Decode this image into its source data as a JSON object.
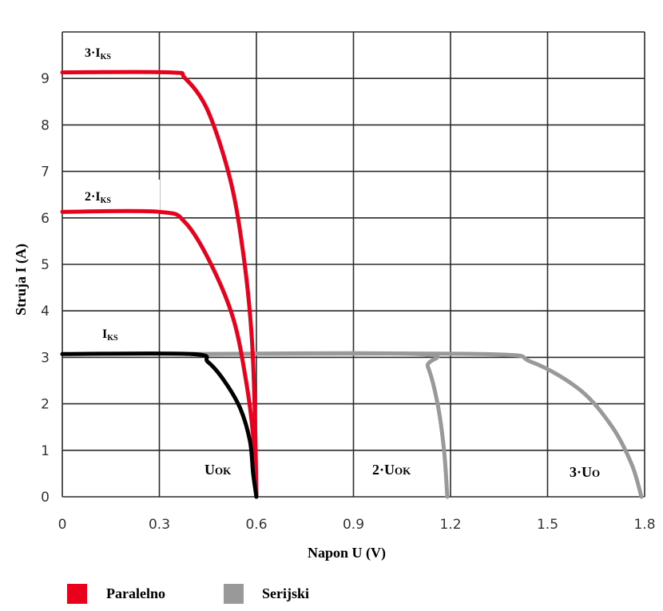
{
  "chart_data": {
    "type": "line",
    "xlabel": "Napon U (V)",
    "ylabel": "Struja  I (A)",
    "xlim": [
      0,
      1.8
    ],
    "ylim": [
      0,
      10
    ],
    "grid": true,
    "x_ticks": [
      "0",
      "0.3",
      "0.6",
      "0.9",
      "1.2",
      "1.5",
      "1.8"
    ],
    "y_ticks": [
      "0",
      "1",
      "2",
      "3",
      "4",
      "5",
      "6",
      "7",
      "8",
      "9"
    ],
    "series": [
      {
        "group": "Serijski",
        "color": "#999999",
        "points": [
          [
            0.4,
            3.07
          ],
          [
            1.1,
            3.07
          ],
          [
            1.13,
            2.8
          ],
          [
            1.16,
            2.0
          ],
          [
            1.18,
            1.0
          ],
          [
            1.19,
            0
          ]
        ]
      },
      {
        "group": "Serijski",
        "color": "#999999",
        "points": [
          [
            0.4,
            3.07
          ],
          [
            1.3,
            3.07
          ],
          [
            1.45,
            2.9
          ],
          [
            1.6,
            2.3
          ],
          [
            1.7,
            1.5
          ],
          [
            1.76,
            0.7
          ],
          [
            1.79,
            0
          ]
        ]
      },
      {
        "group": "Paralelno",
        "color": "#e8001c",
        "points": [
          [
            0,
            9.13
          ],
          [
            0.33,
            9.13
          ],
          [
            0.38,
            9.0
          ],
          [
            0.45,
            8.3
          ],
          [
            0.52,
            6.8
          ],
          [
            0.56,
            5.2
          ],
          [
            0.585,
            3.5
          ],
          [
            0.595,
            1.8
          ],
          [
            0.6,
            0
          ]
        ]
      },
      {
        "group": "Paralelno",
        "color": "#e8001c",
        "points": [
          [
            0,
            6.13
          ],
          [
            0.3,
            6.13
          ],
          [
            0.38,
            5.9
          ],
          [
            0.46,
            5.0
          ],
          [
            0.53,
            3.8
          ],
          [
            0.57,
            2.4
          ],
          [
            0.59,
            1.3
          ],
          [
            0.6,
            0
          ]
        ]
      },
      {
        "group": "single",
        "color": "#000000",
        "points": [
          [
            0,
            3.07
          ],
          [
            0.4,
            3.07
          ],
          [
            0.45,
            2.9
          ],
          [
            0.5,
            2.5
          ],
          [
            0.55,
            1.9
          ],
          [
            0.58,
            1.2
          ],
          [
            0.59,
            0.5
          ],
          [
            0.6,
            0
          ]
        ]
      }
    ],
    "annotations": {
      "ks3_prefix": "3·I",
      "ks2_prefix": "2·I",
      "ks1_prefix": "I",
      "ks_sub": "KS",
      "uok1_prefix": "U",
      "uok2_prefix": "2·U",
      "uok_sub": "OK",
      "uo3_prefix": "3·U",
      "uo3_sub": "O"
    },
    "legend": [
      {
        "label": "Paralelno",
        "color": "#e8001c"
      },
      {
        "label": "Serijski",
        "color": "#999999"
      }
    ],
    "legend_position": "bottom-left"
  }
}
